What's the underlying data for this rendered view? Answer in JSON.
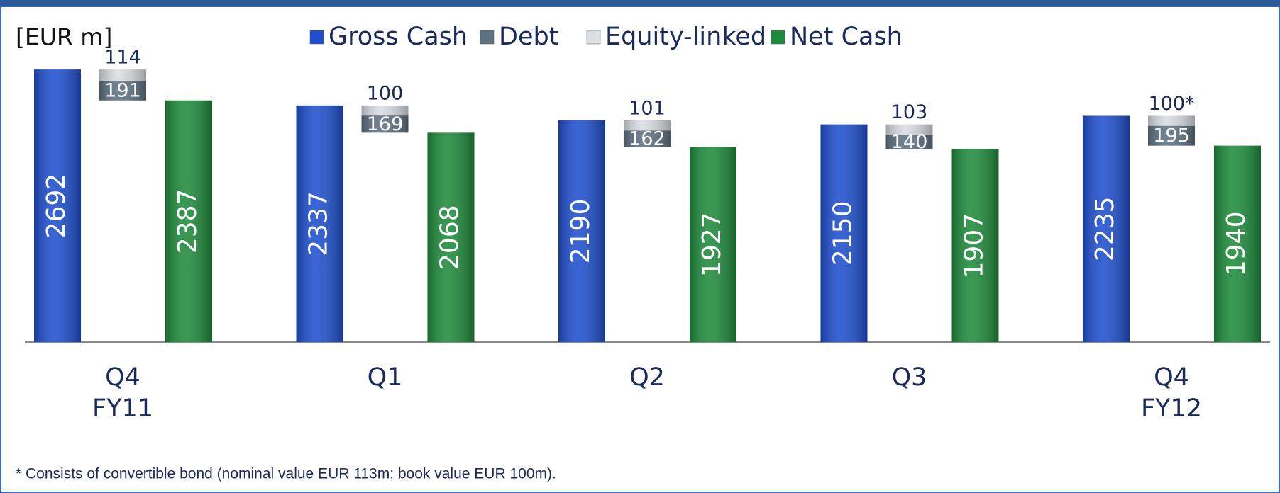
{
  "chart_data": {
    "type": "waterfall-group",
    "unit_label": "[EUR m]",
    "categories": [
      "Q4 FY11",
      "Q1",
      "Q2",
      "Q3",
      "Q4 FY12"
    ],
    "series": [
      {
        "name": "Gross Cash",
        "color": "#1f4fcf",
        "values": [
          2692,
          2337,
          2190,
          2150,
          2235
        ]
      },
      {
        "name": "Debt",
        "color": "#5f7282",
        "values": [
          191,
          169,
          162,
          140,
          195
        ]
      },
      {
        "name": "Equity-linked",
        "color": "#d9dee3",
        "values": [
          114,
          100,
          101,
          103,
          100
        ],
        "value_labels": [
          "114",
          "100",
          "101",
          "103",
          "100*"
        ]
      },
      {
        "name": "Net Cash",
        "color": "#1e8b3b",
        "values": [
          2387,
          2068,
          1927,
          1907,
          1940
        ]
      }
    ],
    "ylim": [
      0,
      2700
    ],
    "footnote": "*   Consists of convertible bond (nominal value EUR 113m; book value EUR 100m)."
  }
}
